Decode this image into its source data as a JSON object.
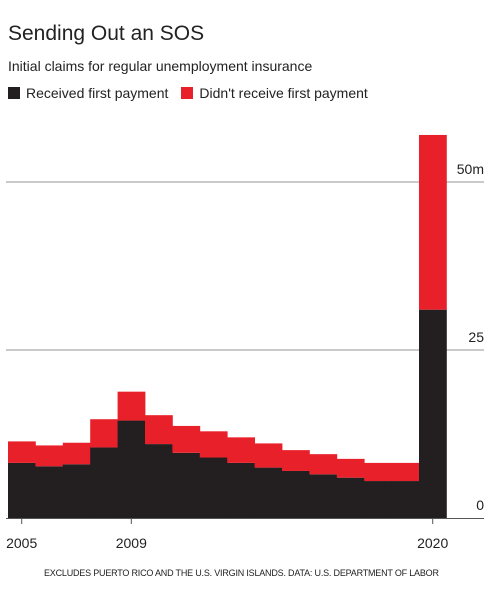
{
  "title": "Sending Out an SOS",
  "subtitle": "Initial claims for regular unemployment insurance",
  "legend": [
    {
      "label": "Received first payment",
      "color": "#231f20"
    },
    {
      "label": "Didn't receive first payment",
      "color": "#e8202a"
    }
  ],
  "footnote": "EXCLUDES PUERTO RICO AND THE U.S. VIRGIN ISLANDS. DATA: U.S. DEPARTMENT OF LABOR",
  "chart_data": {
    "type": "bar",
    "stacked": true,
    "categories": [
      "2005",
      "2006",
      "2007",
      "2008",
      "2009",
      "2010",
      "2011",
      "2012",
      "2013",
      "2014",
      "2015",
      "2016",
      "2017",
      "2018",
      "2019",
      "2020"
    ],
    "series": [
      {
        "name": "Received first payment",
        "color": "#231f20",
        "values": [
          8.2,
          7.7,
          8.0,
          10.5,
          14.5,
          11.0,
          9.7,
          9.0,
          8.2,
          7.5,
          7.0,
          6.5,
          6.0,
          5.5,
          5.5,
          31.0
        ]
      },
      {
        "name": "Didn't receive first payment",
        "color": "#e8202a",
        "values": [
          3.2,
          3.1,
          3.2,
          4.2,
          4.3,
          4.3,
          4.0,
          3.9,
          3.8,
          3.6,
          3.1,
          3.0,
          2.8,
          2.7,
          2.7,
          26.0
        ]
      }
    ],
    "y_ticks": [
      {
        "value": 0,
        "label": "0"
      },
      {
        "value": 25,
        "label": "25"
      },
      {
        "value": 50,
        "label": "50m"
      }
    ],
    "x_tick_labels": [
      {
        "category": "2005",
        "label": "2005"
      },
      {
        "category": "2009",
        "label": "2009"
      },
      {
        "category": "2020",
        "label": "2020"
      }
    ],
    "ylim": [
      0,
      57
    ],
    "y_axis_side": "right",
    "grid": true,
    "legend_placement": "top-left"
  }
}
